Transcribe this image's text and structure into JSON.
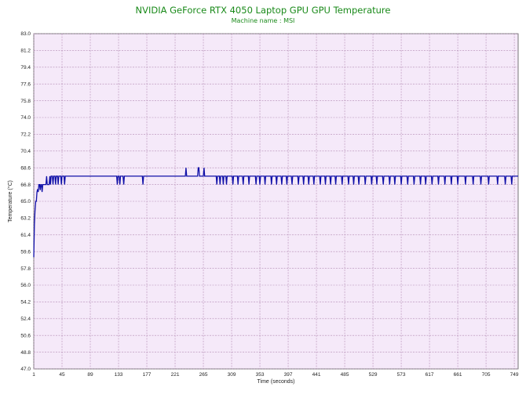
{
  "chart_data": {
    "type": "line",
    "title": "NVIDIA GeForce RTX 4050 Laptop GPU GPU Temperature",
    "subtitle": "Machine name : MSI",
    "xlabel": "Time (seconds)",
    "ylabel": "Temperature (°C)",
    "xlim": [
      1,
      755
    ],
    "ylim": [
      47.0,
      83.0
    ],
    "x_ticks": [
      1,
      45,
      89,
      133,
      177,
      221,
      265,
      309,
      353,
      397,
      441,
      485,
      529,
      573,
      617,
      661,
      705,
      749
    ],
    "y_ticks": [
      "47.0",
      "48.8",
      "50.6",
      "52.4",
      "54.2",
      "56.0",
      "57.8",
      "59.6",
      "61.4",
      "63.2",
      "65.0",
      "66.8",
      "68.6",
      "70.4",
      "72.2",
      "74.0",
      "75.8",
      "77.6",
      "79.4",
      "81.2",
      "83.0"
    ],
    "grid": true,
    "colors": {
      "plot_background": "#f5e9f9",
      "grid": "#b48cb4",
      "line": "#1010a8",
      "title": "#1a8a1a"
    },
    "series": [
      {
        "points": [
          [
            1,
            59.0
          ],
          [
            2,
            62.5
          ],
          [
            3,
            64.0
          ],
          [
            4,
            65.0
          ],
          [
            5,
            65.0
          ],
          [
            6,
            66.0
          ],
          [
            7,
            66.3
          ],
          [
            8,
            66.0
          ],
          [
            9,
            66.8
          ],
          [
            10,
            66.8
          ],
          [
            11,
            66.2
          ],
          [
            12,
            66.8
          ],
          [
            13,
            66.8
          ],
          [
            14,
            66.0
          ],
          [
            15,
            66.8
          ],
          [
            20,
            66.8
          ],
          [
            21,
            67.7
          ],
          [
            22,
            66.8
          ],
          [
            25,
            66.8
          ],
          [
            26,
            67.7
          ],
          [
            27,
            66.8
          ],
          [
            28,
            67.7
          ],
          [
            30,
            67.7
          ],
          [
            31,
            66.8
          ],
          [
            32,
            67.7
          ],
          [
            34,
            67.7
          ],
          [
            35,
            66.8
          ],
          [
            36,
            67.7
          ],
          [
            38,
            67.7
          ],
          [
            39,
            66.8
          ],
          [
            40,
            67.7
          ],
          [
            43,
            67.7
          ],
          [
            44,
            66.8
          ],
          [
            45,
            67.7
          ],
          [
            48,
            67.7
          ],
          [
            49,
            66.8
          ],
          [
            50,
            67.7
          ],
          [
            130,
            67.7
          ],
          [
            131,
            66.8
          ],
          [
            132,
            67.7
          ],
          [
            134,
            67.7
          ],
          [
            135,
            66.8
          ],
          [
            136,
            67.7
          ],
          [
            140,
            67.7
          ],
          [
            141,
            66.8
          ],
          [
            142,
            67.7
          ],
          [
            170,
            67.7
          ],
          [
            171,
            66.8
          ],
          [
            172,
            67.7
          ],
          [
            237,
            67.7
          ],
          [
            238,
            68.6
          ],
          [
            239,
            67.7
          ],
          [
            256,
            67.7
          ],
          [
            257,
            68.6
          ],
          [
            258,
            68.6
          ],
          [
            259,
            67.7
          ],
          [
            265,
            67.7
          ],
          [
            266,
            68.6
          ],
          [
            267,
            67.7
          ],
          [
            285,
            67.7
          ],
          [
            286,
            66.8
          ],
          [
            287,
            67.7
          ],
          [
            290,
            67.7
          ],
          [
            291,
            66.8
          ],
          [
            292,
            67.7
          ],
          [
            295,
            67.7
          ],
          [
            296,
            66.8
          ],
          [
            297,
            67.7
          ],
          [
            300,
            67.7
          ],
          [
            301,
            66.8
          ],
          [
            302,
            67.7
          ],
          [
            310,
            67.7
          ],
          [
            311,
            66.8
          ],
          [
            312,
            67.7
          ],
          [
            318,
            67.7
          ],
          [
            319,
            66.8
          ],
          [
            320,
            67.7
          ],
          [
            326,
            67.7
          ],
          [
            327,
            66.8
          ],
          [
            328,
            67.7
          ],
          [
            335,
            67.7
          ],
          [
            336,
            66.8
          ],
          [
            337,
            67.7
          ],
          [
            346,
            67.7
          ],
          [
            347,
            66.8
          ],
          [
            348,
            67.7
          ],
          [
            352,
            67.7
          ],
          [
            353,
            66.8
          ],
          [
            354,
            67.7
          ],
          [
            360,
            67.7
          ],
          [
            361,
            66.8
          ],
          [
            362,
            67.7
          ],
          [
            370,
            67.7
          ],
          [
            371,
            66.8
          ],
          [
            372,
            67.7
          ],
          [
            378,
            67.7
          ],
          [
            379,
            66.8
          ],
          [
            380,
            67.7
          ],
          [
            386,
            67.7
          ],
          [
            387,
            66.8
          ],
          [
            388,
            67.7
          ],
          [
            394,
            67.7
          ],
          [
            395,
            66.8
          ],
          [
            396,
            67.7
          ],
          [
            402,
            67.7
          ],
          [
            403,
            66.8
          ],
          [
            404,
            67.7
          ],
          [
            412,
            67.7
          ],
          [
            413,
            66.8
          ],
          [
            414,
            67.7
          ],
          [
            420,
            67.7
          ],
          [
            421,
            66.8
          ],
          [
            422,
            67.7
          ],
          [
            428,
            67.7
          ],
          [
            429,
            66.8
          ],
          [
            430,
            67.7
          ],
          [
            436,
            67.7
          ],
          [
            437,
            66.8
          ],
          [
            438,
            67.7
          ],
          [
            446,
            67.7
          ],
          [
            447,
            66.8
          ],
          [
            448,
            67.7
          ],
          [
            454,
            67.7
          ],
          [
            455,
            66.8
          ],
          [
            456,
            67.7
          ],
          [
            462,
            67.7
          ],
          [
            463,
            66.8
          ],
          [
            464,
            67.7
          ],
          [
            470,
            67.7
          ],
          [
            471,
            66.8
          ],
          [
            472,
            67.7
          ],
          [
            480,
            67.7
          ],
          [
            481,
            66.8
          ],
          [
            482,
            67.7
          ],
          [
            490,
            67.7
          ],
          [
            491,
            66.8
          ],
          [
            492,
            67.7
          ],
          [
            498,
            67.7
          ],
          [
            499,
            66.8
          ],
          [
            500,
            67.7
          ],
          [
            506,
            67.7
          ],
          [
            507,
            66.8
          ],
          [
            508,
            67.7
          ],
          [
            516,
            67.7
          ],
          [
            517,
            66.8
          ],
          [
            518,
            67.7
          ],
          [
            526,
            67.7
          ],
          [
            527,
            66.8
          ],
          [
            528,
            67.7
          ],
          [
            534,
            67.7
          ],
          [
            535,
            66.8
          ],
          [
            536,
            67.7
          ],
          [
            544,
            67.7
          ],
          [
            545,
            66.8
          ],
          [
            546,
            67.7
          ],
          [
            554,
            67.7
          ],
          [
            555,
            66.8
          ],
          [
            556,
            67.7
          ],
          [
            562,
            67.7
          ],
          [
            563,
            66.8
          ],
          [
            564,
            67.7
          ],
          [
            572,
            67.7
          ],
          [
            573,
            66.8
          ],
          [
            574,
            67.7
          ],
          [
            582,
            67.7
          ],
          [
            583,
            66.8
          ],
          [
            584,
            67.7
          ],
          [
            592,
            67.7
          ],
          [
            593,
            66.8
          ],
          [
            594,
            67.7
          ],
          [
            602,
            67.7
          ],
          [
            603,
            66.8
          ],
          [
            604,
            67.7
          ],
          [
            610,
            67.7
          ],
          [
            611,
            66.8
          ],
          [
            612,
            67.7
          ],
          [
            620,
            67.7
          ],
          [
            621,
            66.8
          ],
          [
            622,
            67.7
          ],
          [
            630,
            67.7
          ],
          [
            631,
            66.8
          ],
          [
            632,
            67.7
          ],
          [
            640,
            67.7
          ],
          [
            641,
            66.8
          ],
          [
            642,
            67.7
          ],
          [
            650,
            67.7
          ],
          [
            651,
            66.8
          ],
          [
            652,
            67.7
          ],
          [
            660,
            67.7
          ],
          [
            661,
            66.8
          ],
          [
            662,
            67.7
          ],
          [
            672,
            67.7
          ],
          [
            673,
            66.8
          ],
          [
            674,
            67.7
          ],
          [
            684,
            67.7
          ],
          [
            685,
            66.8
          ],
          [
            686,
            67.7
          ],
          [
            696,
            67.7
          ],
          [
            697,
            66.8
          ],
          [
            698,
            67.7
          ],
          [
            708,
            67.7
          ],
          [
            709,
            66.8
          ],
          [
            710,
            67.7
          ],
          [
            722,
            67.7
          ],
          [
            723,
            66.8
          ],
          [
            724,
            67.7
          ],
          [
            734,
            67.7
          ],
          [
            735,
            66.8
          ],
          [
            736,
            67.7
          ],
          [
            744,
            67.7
          ],
          [
            745,
            66.8
          ],
          [
            746,
            67.7
          ],
          [
            755,
            67.7
          ]
        ]
      }
    ]
  }
}
